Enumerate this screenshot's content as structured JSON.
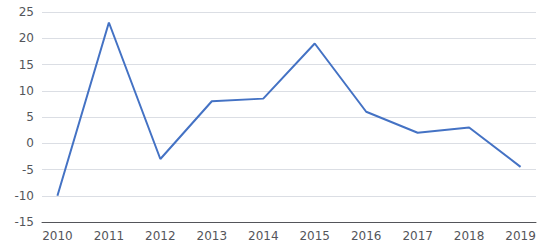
{
  "chart_data": {
    "type": "line",
    "x": [
      2010,
      2011,
      2012,
      2013,
      2014,
      2015,
      2016,
      2017,
      2018,
      2019
    ],
    "values": [
      -10,
      23,
      -3,
      8,
      8.5,
      19,
      6,
      2,
      3,
      -4.5
    ],
    "color": "#4472c4",
    "xlim": [
      2009.7,
      2019.3
    ],
    "xticks": [
      2010,
      2011,
      2012,
      2013,
      2014,
      2015,
      2016,
      2017,
      2018,
      2019
    ],
    "ylim": [
      -15,
      25
    ],
    "yticks": [
      -15,
      -10,
      -5,
      0,
      5,
      10,
      15,
      20,
      25
    ],
    "grid": true
  }
}
